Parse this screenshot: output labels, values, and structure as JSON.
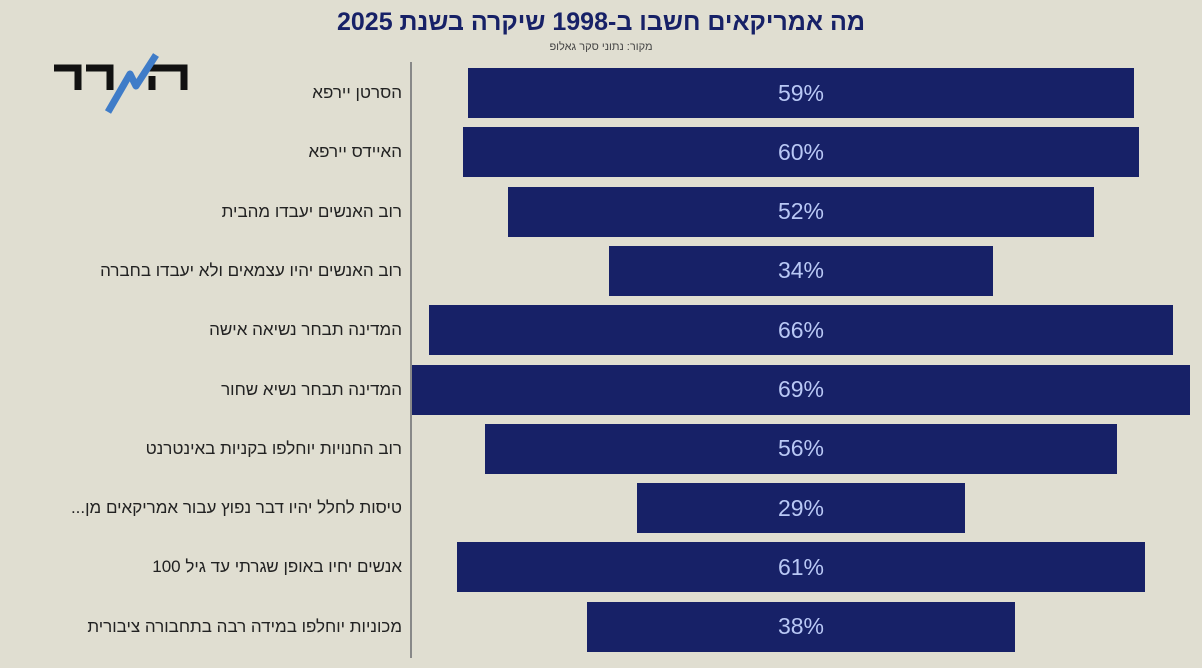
{
  "chart_data": {
    "type": "bar",
    "orientation": "horizontal-centered",
    "title": "מה אמריקאים חשבו ב-1998 שיקרה בשנת 2025",
    "subtitle": "מקור: נתוני סקר גאלופ",
    "categories": [
      "הסרטן יירפא",
      "האיידס יירפא",
      "רוב האנשים יעבדו מהבית",
      "רוב האנשים יהיו עצמאים ולא יעבדו בחברה",
      "המדינה תבחר נשיאה אישה",
      "המדינה תבחר נשיא שחור",
      "רוב החנויות יוחלפו בקניות באינטרנט",
      "טיסות לחלל יהיו דבר נפוץ עבור אמריקאים מן...",
      "אנשים יחיו באופן שגרתי עד גיל 100",
      "מכוניות יוחלפו במידה רבה בתחבורה ציבורית"
    ],
    "values": [
      59,
      60,
      52,
      34,
      66,
      69,
      56,
      29,
      61,
      38
    ],
    "labels": [
      "59%",
      "60%",
      "52%",
      "34%",
      "66%",
      "69%",
      "56%",
      "29%",
      "61%",
      "38%"
    ],
    "unit": "%",
    "bar_color": "#172167",
    "label_color": "#b9c8f5"
  },
  "logo": {
    "text": "המדד"
  }
}
